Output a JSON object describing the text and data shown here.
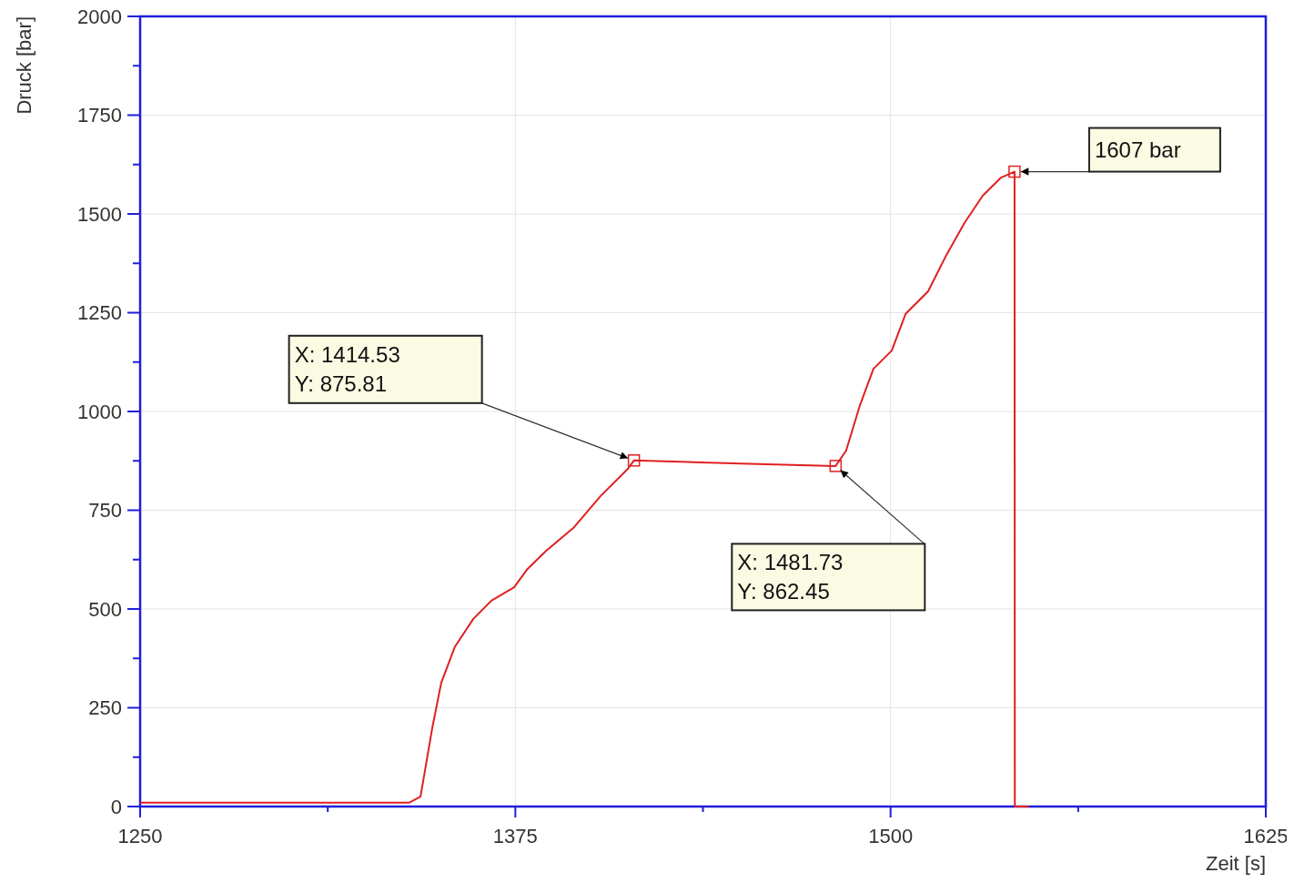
{
  "chart_data": {
    "type": "line",
    "xlabel": "Zeit [s]",
    "ylabel": "Druck [bar]",
    "x": [
      1250,
      1300,
      1339.7,
      1343.4,
      1347.3,
      1350.3,
      1354.9,
      1361,
      1367,
      1374.6,
      1379,
      1385.2,
      1394.3,
      1403.4,
      1412.5,
      1414.5,
      1450,
      1481.7,
      1485.2,
      1489.8,
      1494.3,
      1500.4,
      1505,
      1512.5,
      1518.6,
      1524.6,
      1530.7,
      1536.8,
      1541.3,
      1541.4,
      1546
    ],
    "series": [
      {
        "color": "#e02020",
        "values": [
          10,
          10,
          10,
          25,
          198,
          313,
          405,
          475,
          521,
          555,
          601,
          647,
          705,
          786,
          855,
          876,
          868,
          862,
          901,
          1016,
          1108,
          1154,
          1247,
          1304,
          1396,
          1477,
          1546,
          1592,
          1607,
          0,
          0
        ]
      }
    ],
    "xlim": [
      1250,
      1625
    ],
    "ylim": [
      0,
      2000
    ],
    "xticks": [
      1250,
      {
        "value": 1312.5,
        "label": null
      },
      1375,
      {
        "value": 1437.5,
        "label": null
      },
      1500,
      {
        "value": 1562.5,
        "label": null
      },
      1625
    ],
    "yticks": [
      0,
      {
        "value": 125,
        "label": null
      },
      250,
      {
        "value": 375,
        "label": null
      },
      500,
      {
        "value": 625,
        "label": null
      },
      750,
      {
        "value": 875,
        "label": null
      },
      1000,
      {
        "value": 1125,
        "label": null
      },
      1250,
      {
        "value": 1375,
        "label": null
      },
      1500,
      {
        "value": 1625,
        "label": null
      },
      1750,
      {
        "value": 1875,
        "label": null
      },
      2000
    ],
    "grid": true,
    "line_style": "solid",
    "annotations": [
      "X: 1414.53\nY: 875.81",
      "X: 1481.73\nY: 862.45",
      {
        "text": "1607 bar",
        "x": 1541.3,
        "y": 1607
      }
    ]
  }
}
